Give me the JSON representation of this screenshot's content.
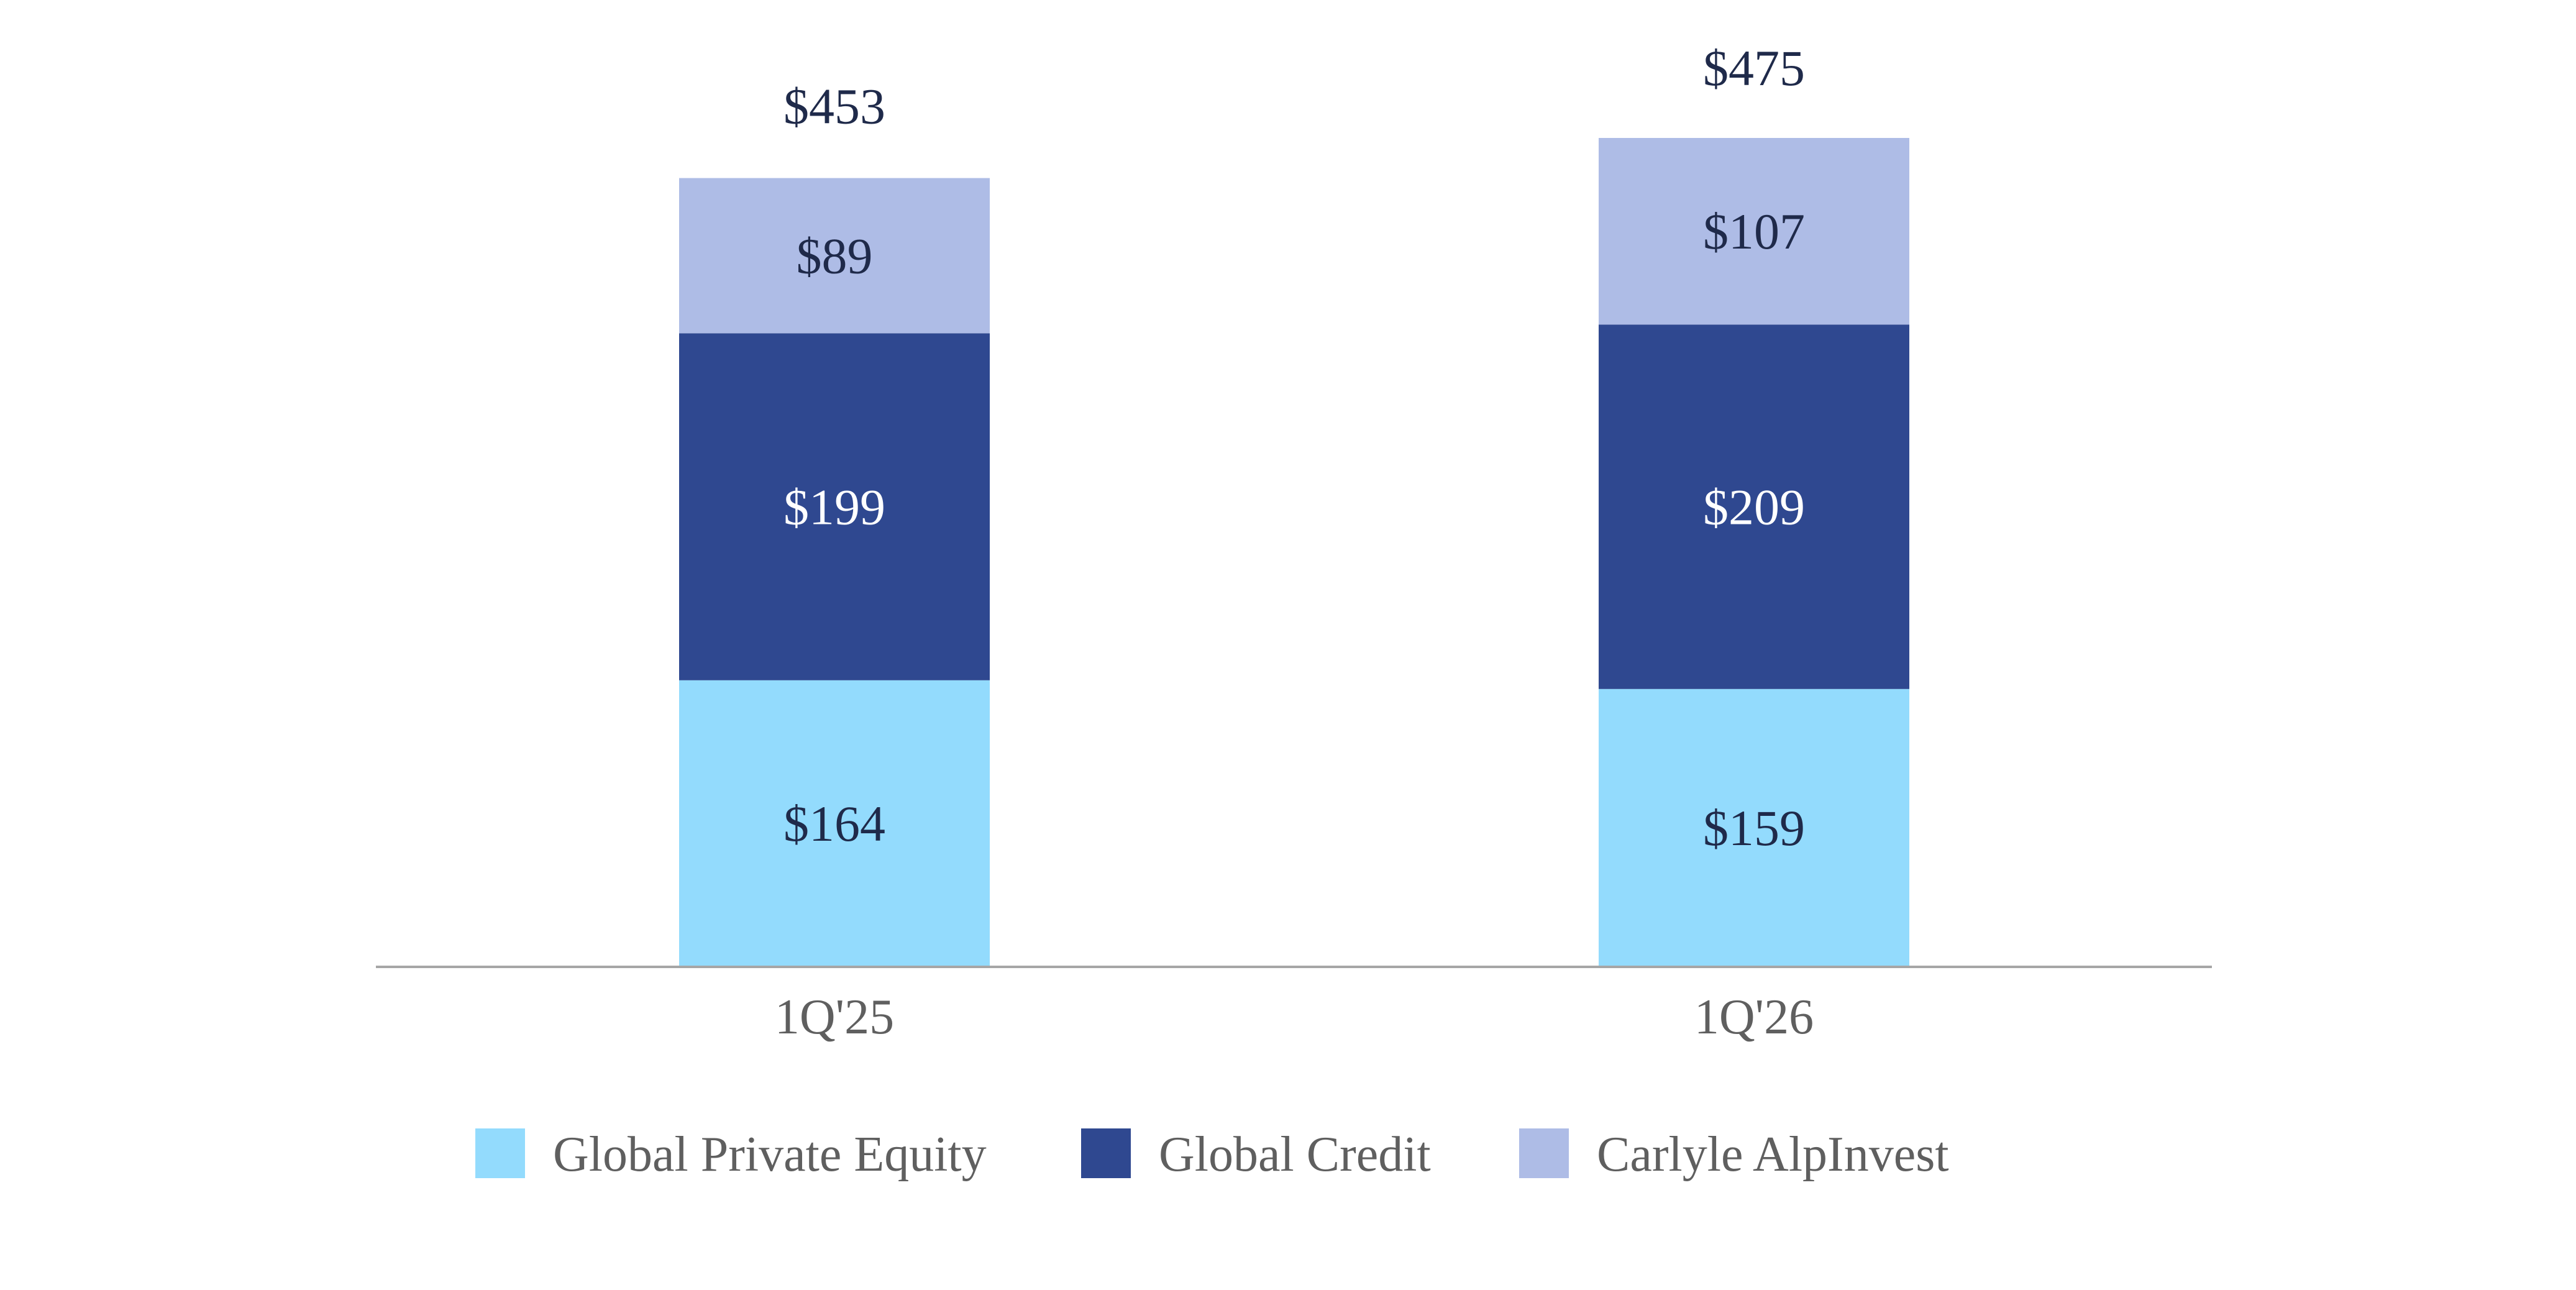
{
  "chart_data": {
    "type": "bar",
    "stacked": true,
    "categories": [
      "1Q'25",
      "1Q'26"
    ],
    "series": [
      {
        "name": "Global Private Equity",
        "color": "#93dbfd",
        "label_color": "#1f2a4a",
        "values": [
          164,
          159
        ],
        "labels": [
          "$164",
          "$159"
        ]
      },
      {
        "name": "Global Credit",
        "color": "#2f4890",
        "label_color": "#ffffff",
        "values": [
          199,
          209
        ],
        "labels": [
          "$199",
          "$209"
        ]
      },
      {
        "name": "Carlyle AlpInvest",
        "color": "#aebce6",
        "label_color": "#1f2a4a",
        "values": [
          89,
          107
        ],
        "labels": [
          "$89",
          "$107"
        ]
      }
    ],
    "totals": [
      453,
      475
    ],
    "total_labels": [
      "$453",
      "$475"
    ],
    "title": "",
    "xlabel": "",
    "ylabel": "",
    "ylim": [
      0,
      475
    ],
    "grid": false,
    "legend_position": "bottom",
    "axis_color": "#a6a6a6"
  }
}
